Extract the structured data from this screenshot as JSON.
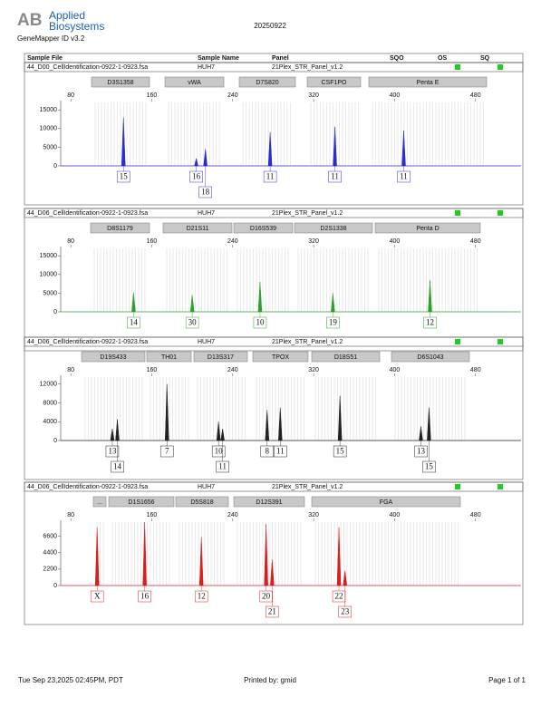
{
  "header": {
    "brand_line1": "Applied",
    "brand_line2": "Biosystems",
    "logo": "AB",
    "software": "GeneMapper ID v3.2",
    "date": "20250922"
  },
  "columns": [
    "Sample File",
    "Sample Name",
    "Panel",
    "SQO",
    "OS",
    "SQ"
  ],
  "panels": [
    {
      "sample_file": "44_D00_CellIdentification-0922-1-0923.fsa",
      "sample_name": "HUH7",
      "panel": "21Plex_STR_Panel_v1.2",
      "color": "#2b2bd0",
      "markers": [
        "D3S1358",
        "vWA",
        "D7S820",
        "CSF1PO",
        "Penta E"
      ],
      "xlim": [
        70,
        525
      ],
      "xticks": [
        80,
        160,
        240,
        320,
        400,
        480
      ],
      "ylim": [
        0,
        17000
      ],
      "yticks": [
        0,
        5000,
        10000,
        15000
      ],
      "peaks": {
        "x": [
          132,
          204,
          213,
          277,
          341,
          409
        ],
        "values": [
          13000,
          2000,
          4500,
          9000,
          10500,
          9500
        ],
        "labels": [
          "15",
          "16",
          "18",
          "11",
          "11",
          "11"
        ]
      }
    },
    {
      "sample_file": "44_D06_CellIdentification-0922-1-0923.fsa",
      "sample_name": "HUH7",
      "panel": "21Plex_STR_Panel_v1.2",
      "color": "#2ca02c",
      "markers": [
        "D8S1179",
        "D21S11",
        "D16S539",
        "D2S1338",
        "Penta D"
      ],
      "xlim": [
        70,
        525
      ],
      "xticks": [
        80,
        160,
        240,
        320,
        400,
        480
      ],
      "ylim": [
        0,
        17000
      ],
      "yticks": [
        0,
        5000,
        10000,
        15000
      ],
      "peaks": {
        "x": [
          142,
          200,
          267,
          339,
          435
        ],
        "values": [
          5200,
          4500,
          8000,
          5000,
          8500
        ],
        "labels": [
          "14",
          "30",
          "10",
          "19",
          "12"
        ]
      }
    },
    {
      "sample_file": "44_D06_CellIdentification-0922-1-0923.fsa",
      "sample_name": "HUH7",
      "panel": "21Plex_STR_Panel_v1.2",
      "color": "#222222",
      "markers": [
        "D19S433",
        "TH01",
        "D13S317",
        "TPOX",
        "D18S51",
        "D6S1043"
      ],
      "xlim": [
        70,
        525
      ],
      "xticks": [
        80,
        160,
        240,
        320,
        400,
        480
      ],
      "ylim": [
        0,
        13500
      ],
      "yticks": [
        0,
        4000,
        8000,
        12000
      ],
      "peaks": {
        "x": [
          121,
          126,
          175,
          226,
          230,
          274,
          287,
          346,
          426,
          434
        ],
        "values": [
          2500,
          4500,
          12000,
          4000,
          2500,
          6500,
          7000,
          9500,
          3000,
          7000
        ],
        "labels": [
          "13",
          "14",
          "7",
          "10",
          "11",
          "8",
          "11",
          "15",
          "13",
          "15"
        ]
      }
    },
    {
      "sample_file": "44_D06_CellIdentification-0922-1-0923.fsa",
      "sample_name": "HUH7",
      "panel": "21Plex_STR_Panel_v1.2",
      "color": "#d62020",
      "markers": [
        "...",
        "D1S1656",
        "D5S818",
        "D12S391",
        "FGA"
      ],
      "xlim": [
        70,
        525
      ],
      "xticks": [
        80,
        160,
        240,
        320,
        400,
        480
      ],
      "ylim": [
        0,
        8500
      ],
      "yticks": [
        0,
        2200,
        4400,
        6600
      ],
      "peaks": {
        "x": [
          106,
          153,
          209,
          273,
          279,
          345,
          351
        ],
        "values": [
          7800,
          8500,
          6500,
          8200,
          3500,
          7800,
          2000
        ],
        "labels": [
          "X",
          "16",
          "12",
          "20",
          "21",
          "22",
          "23"
        ]
      }
    }
  ],
  "footer": {
    "printed_at": "Tue Sep 23,2025 02:45PM, PDT",
    "printed_by": "Printed by: gmid",
    "page": "Page 1 of 1"
  }
}
